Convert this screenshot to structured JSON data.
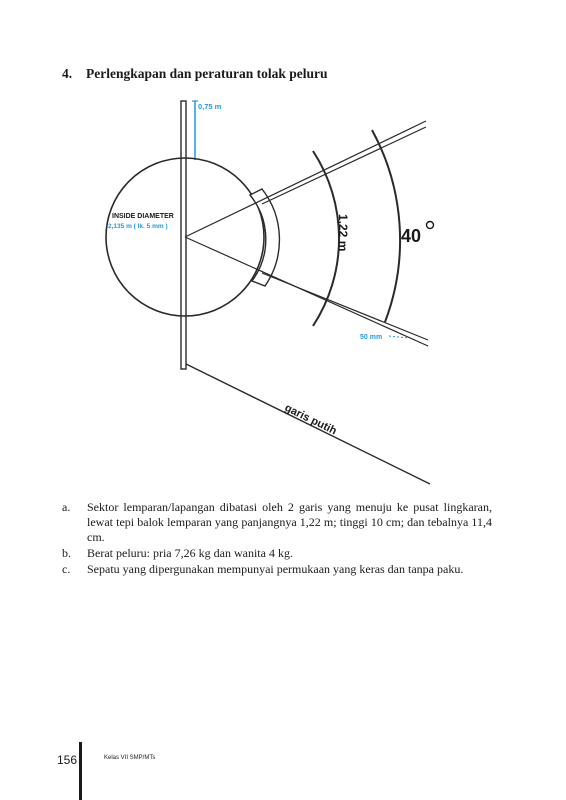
{
  "section": {
    "number": "4.",
    "title": "Perlengkapan dan peraturan tolak peluru"
  },
  "diagram": {
    "board_height_label": "0,75 m",
    "inside_diameter_label": "INSIDE DIAMETER",
    "diameter_value_label": "2,135 m ( lk. 5 mm )",
    "board_length_label": "1,22 m",
    "angle_label": "40",
    "line_width_label": "50 mm",
    "white_line_label": "garis putih",
    "colors": {
      "accent": "#1e9ad6",
      "line": "#2a2a2a"
    }
  },
  "items": [
    {
      "mark": "a.",
      "text": "Sektor lemparan/lapangan dibatasi oleh 2 garis yang menuju ke pusat lingkaran, lewat tepi balok lemparan yang panjangnya 1,22 m; tinggi 10 cm; dan tebalnya 11,4 cm."
    },
    {
      "mark": "b.",
      "text": "Berat peluru: pria 7,26 kg dan wanita 4 kg."
    },
    {
      "mark": "c.",
      "text": "Sepatu yang dipergunakan mempunyai permukaan yang keras dan tanpa paku."
    }
  ],
  "footer": {
    "page_number": "156",
    "book_title": "Kelas VII SMP/MTs"
  }
}
